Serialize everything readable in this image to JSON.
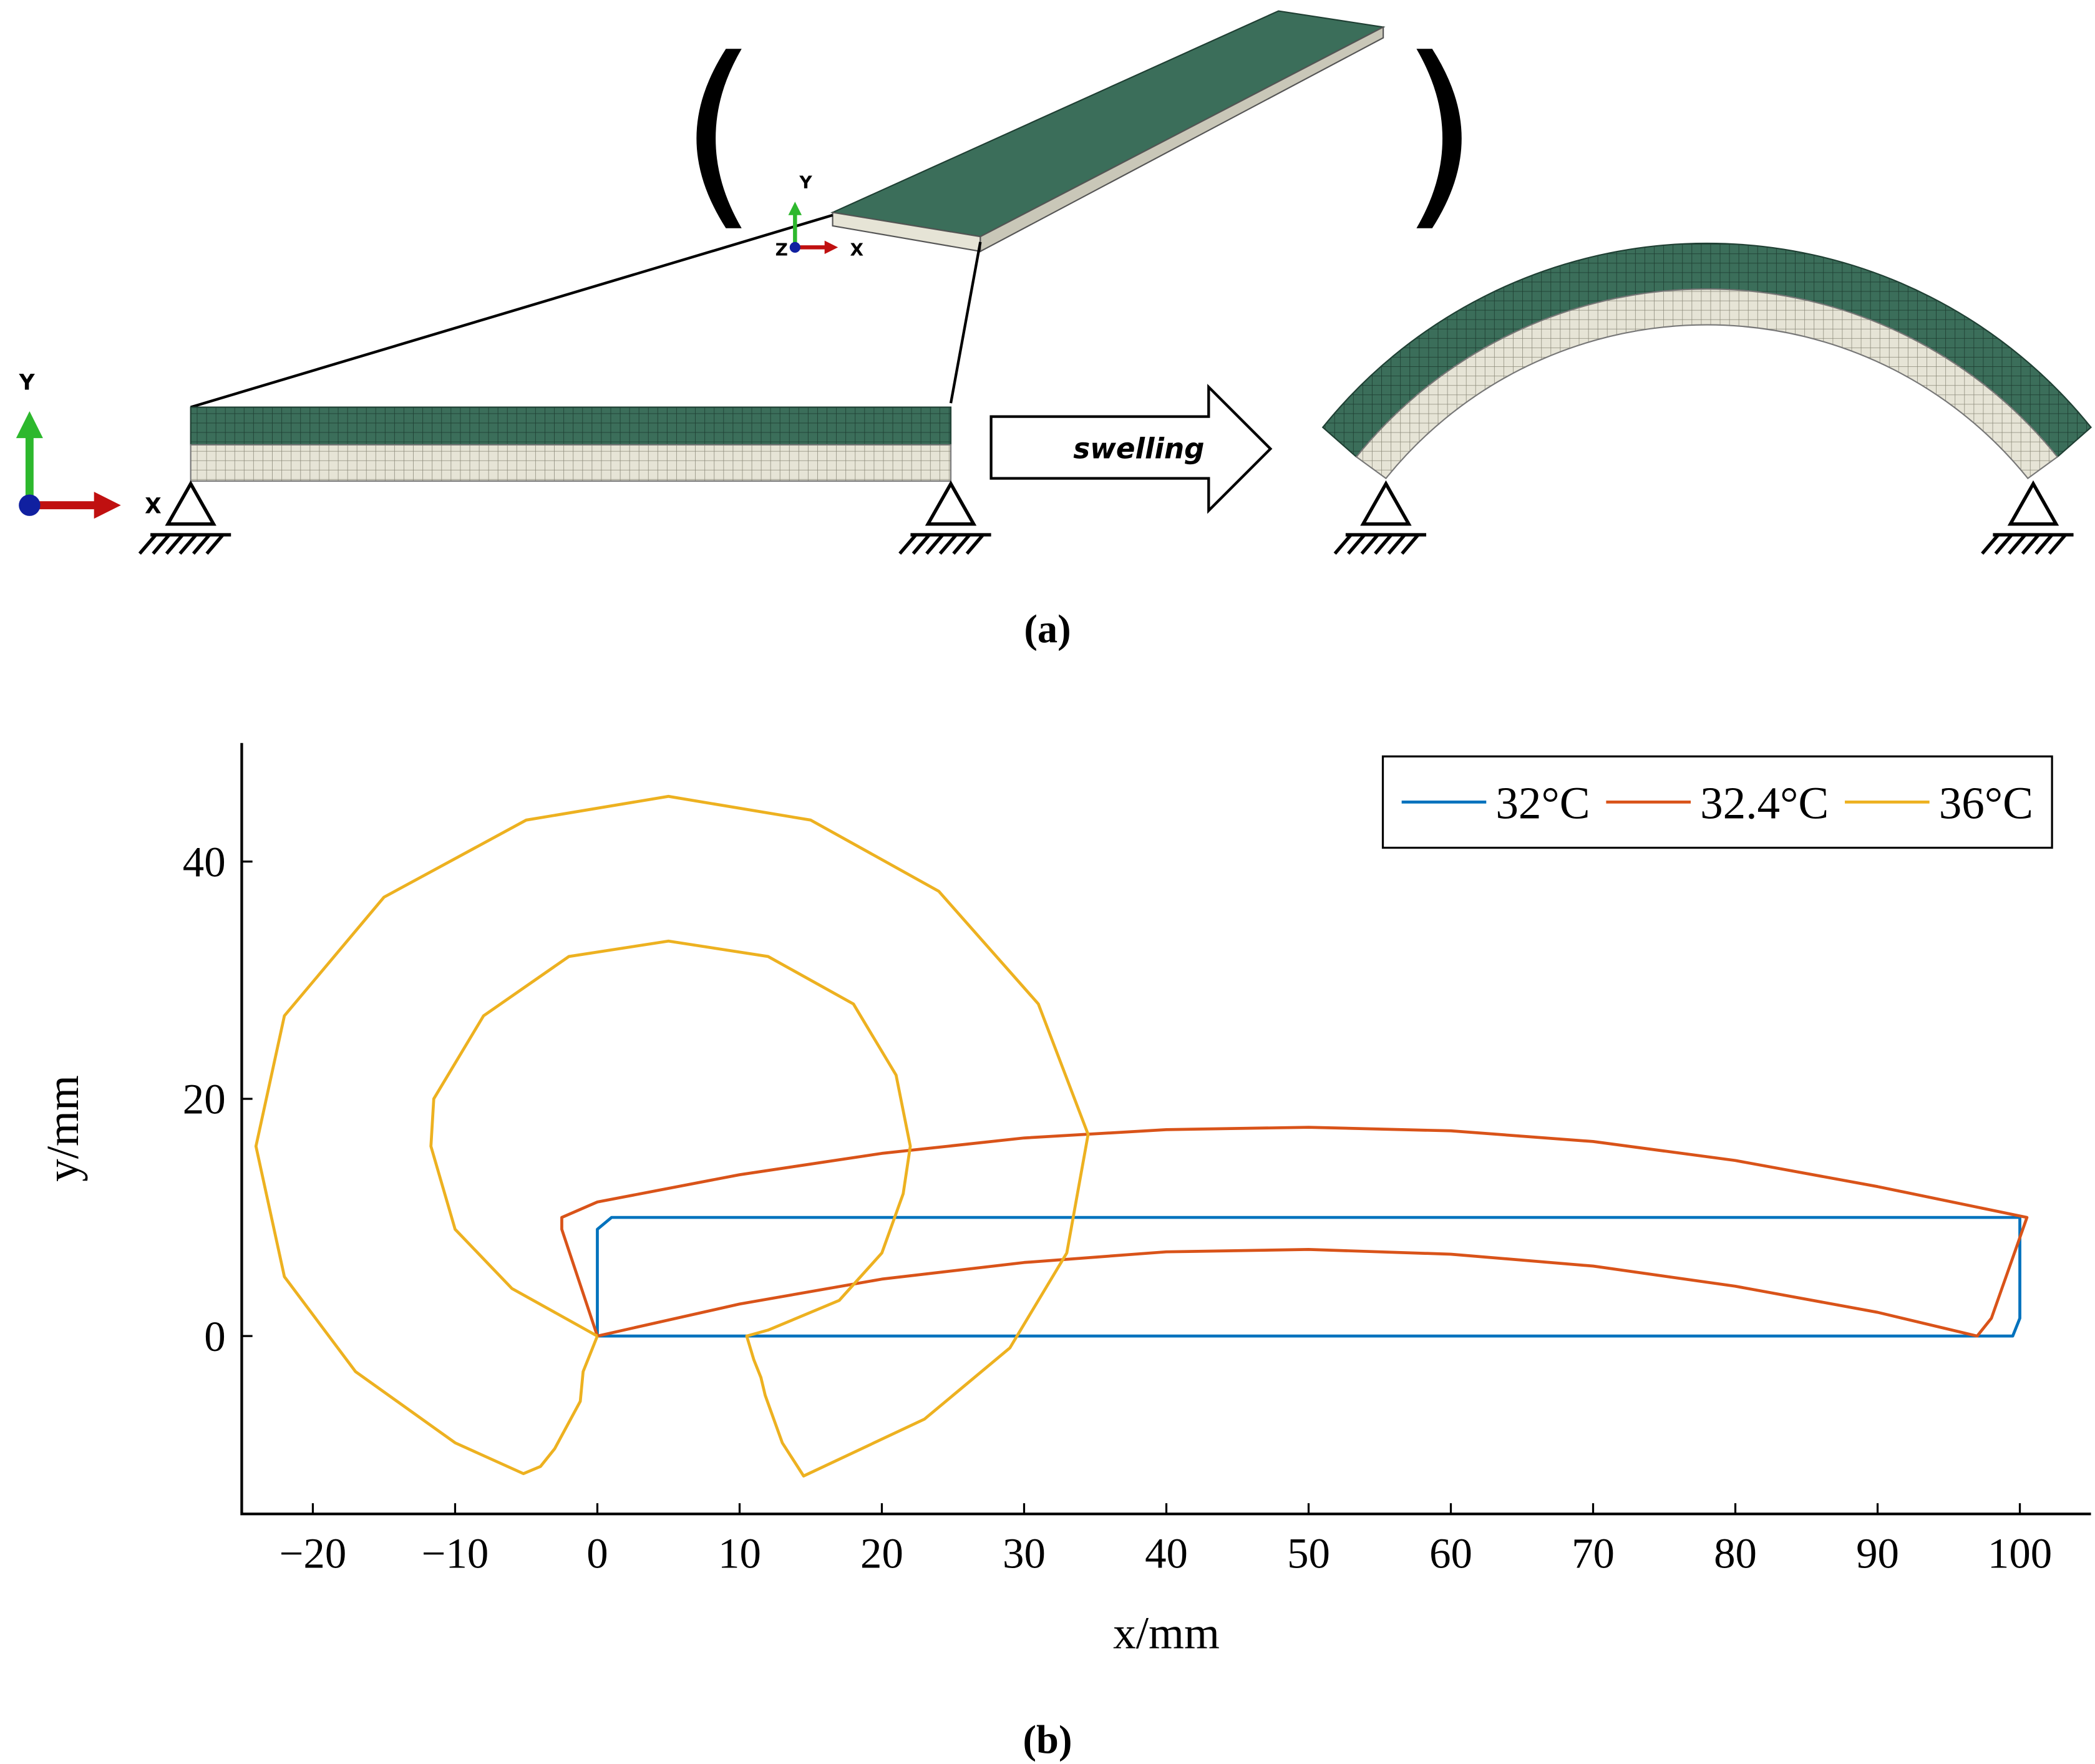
{
  "panel_a": {
    "inset_axes": {
      "y": "Y",
      "z": "Z",
      "x": "X"
    },
    "main_axes": {
      "y": "Y",
      "x": "X"
    },
    "arrow_label": "swelling",
    "caption": "(a)"
  },
  "chart_data": {
    "type": "line",
    "caption": "(b)",
    "x_label": "x/mm",
    "y_label": "y/mm",
    "xlim": [
      -25,
      105
    ],
    "ylim": [
      -15,
      50
    ],
    "xticks": [
      {
        "value": -20,
        "label": "−20"
      },
      {
        "value": -10,
        "label": "−10"
      },
      0,
      10,
      20,
      30,
      40,
      50,
      60,
      70,
      80,
      90,
      100
    ],
    "yticks": [
      0,
      20,
      40
    ],
    "legend": "upper right",
    "series": [
      {
        "name": "32°C",
        "color": "#0072bd",
        "x": [
          0,
          99.5,
          100,
          100,
          1,
          0,
          0
        ],
        "values": [
          0,
          0,
          1.5,
          10,
          10,
          9,
          0
        ]
      },
      {
        "name": "32.4°C",
        "color": "#d95319",
        "x": [
          0,
          10,
          20,
          30,
          40,
          50,
          60,
          70,
          80,
          90,
          97,
          98,
          100.5,
          90,
          80,
          70,
          60,
          50,
          40,
          30,
          20,
          10,
          0,
          -2.5,
          -2.5,
          0
        ],
        "values": [
          0,
          2.7,
          4.8,
          6.2,
          7.1,
          7.3,
          6.9,
          5.9,
          4.2,
          2,
          0,
          1.5,
          10,
          12.6,
          14.8,
          16.4,
          17.3,
          17.6,
          17.4,
          16.7,
          15.4,
          13.6,
          11.3,
          10,
          9,
          0
        ]
      },
      {
        "name": "36°C",
        "color": "#edb120",
        "x": [
          0,
          -1,
          -1.2,
          -3,
          -4,
          -5.2,
          -10,
          -17,
          -22,
          -24,
          -22,
          -15,
          -5,
          5,
          15,
          24,
          31,
          34.5,
          33,
          29,
          23,
          14.5,
          13,
          11.8,
          11.5,
          11,
          10.5,
          12,
          17,
          20,
          21.5,
          22,
          21,
          18,
          12,
          5,
          -2,
          -8,
          -11.5,
          -11.7,
          -10,
          -6,
          0
        ],
        "values": [
          0,
          -3,
          -5.5,
          -9.5,
          -11,
          -11.6,
          -9,
          -3,
          5,
          16,
          27,
          37,
          43.5,
          45.5,
          43.5,
          37.5,
          28,
          17,
          7,
          -1,
          -7,
          -11.8,
          -9,
          -5,
          -3.5,
          -2,
          0,
          0.5,
          3,
          7,
          12,
          16,
          22,
          28,
          32,
          33.3,
          32,
          27,
          20,
          16,
          9,
          4,
          0
        ]
      }
    ]
  }
}
